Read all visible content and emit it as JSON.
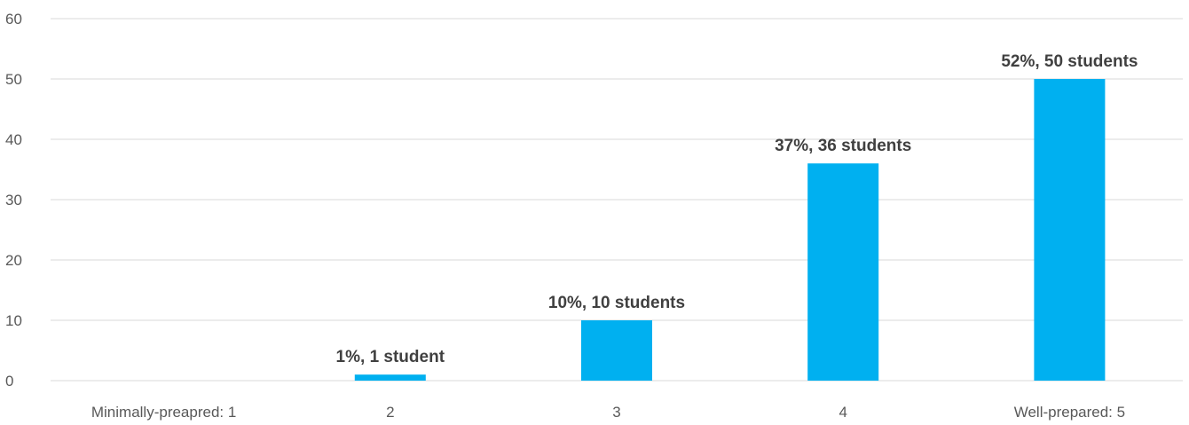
{
  "chart_data": {
    "type": "bar",
    "categories": [
      "Minimally-preapred: 1",
      "2",
      "3",
      "4",
      "Well-prepared: 5"
    ],
    "values": [
      0,
      1,
      10,
      36,
      50
    ],
    "data_labels": [
      "",
      "1%,  1 student",
      "10%,  10 students",
      "37%,  36 students",
      "52%,  50 students"
    ],
    "ylim": [
      0,
      60
    ],
    "yticks": [
      0,
      10,
      20,
      30,
      40,
      50,
      60
    ],
    "grid": true,
    "legend": "none",
    "bar_color": "#00b0f0"
  }
}
